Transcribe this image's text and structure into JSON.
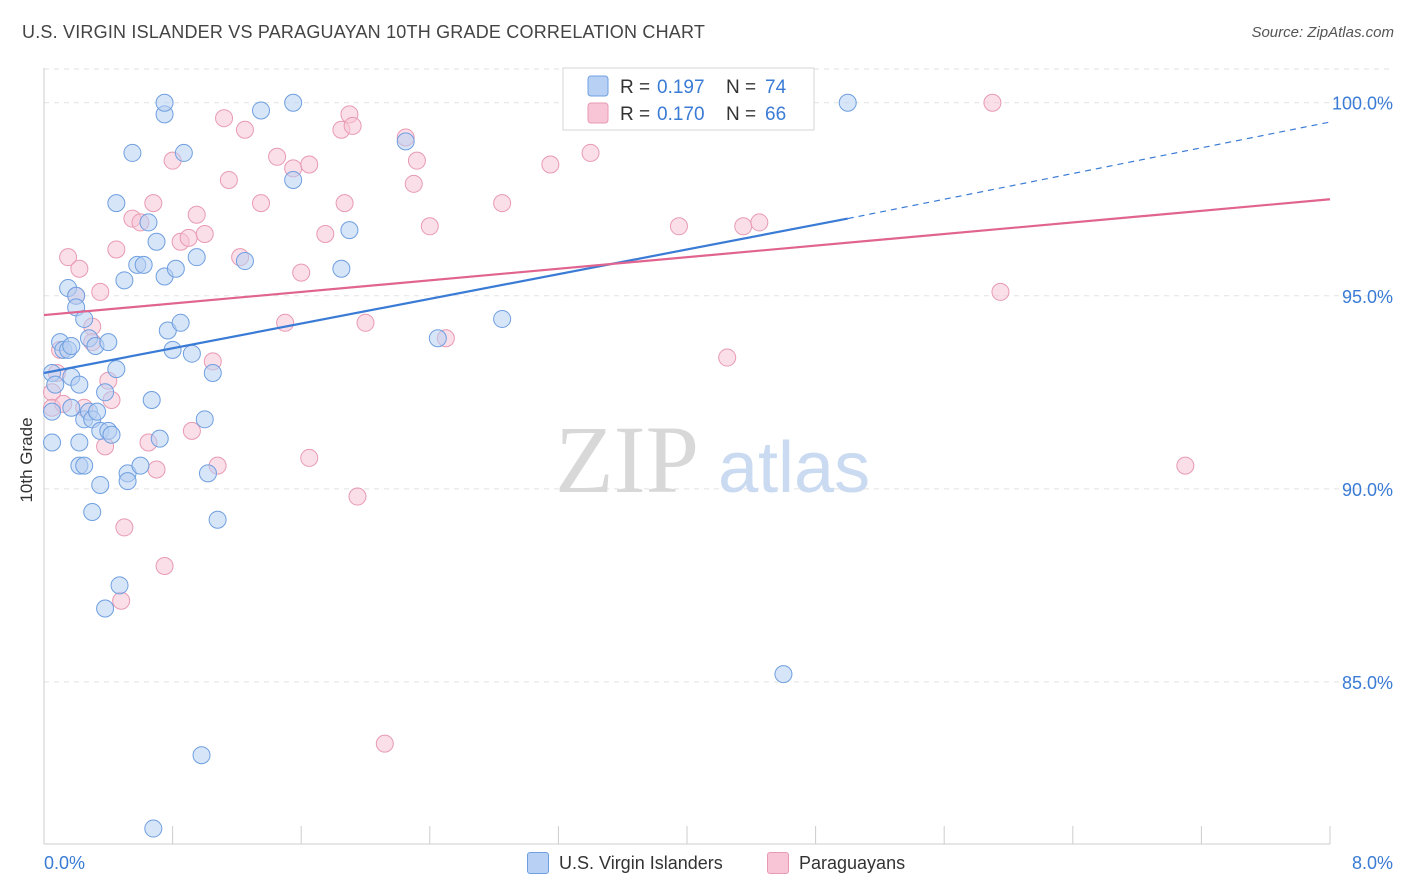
{
  "title": "U.S. VIRGIN ISLANDER VS PARAGUAYAN 10TH GRADE CORRELATION CHART",
  "source": "Source: ZipAtlas.com",
  "watermark": {
    "zip": "ZIP",
    "atlas": "atlas"
  },
  "chart_data": {
    "type": "scatter",
    "xlabel": "",
    "ylabel": "10th Grade",
    "xlim": [
      0.0,
      8.0
    ],
    "ylim": [
      80.8,
      100.9
    ],
    "x_tick_labels": [
      "0.0%",
      "8.0%"
    ],
    "y_ticks": [
      85.0,
      90.0,
      95.0,
      100.0
    ],
    "y_tick_labels": [
      "85.0%",
      "90.0%",
      "95.0%",
      "100.0%"
    ],
    "grid": true,
    "legend": [
      {
        "r_label": "R =",
        "r_value": "0.197",
        "n_label": "N =",
        "n_value": "74"
      },
      {
        "r_label": "R =",
        "r_value": "0.170",
        "n_label": "N =",
        "n_value": "66"
      }
    ],
    "series": [
      {
        "name": "U.S. Virgin Islanders",
        "color": "#6f9fe0",
        "fill": "#b7d0f3",
        "line_color": "#3a7bd5",
        "trend": {
          "x0": 0.0,
          "y0": 93.0,
          "x1": 5.0,
          "y1": 97.0,
          "x_end": 8.0,
          "y_end": 99.5
        },
        "points": [
          [
            0.05,
            93.0
          ],
          [
            0.07,
            92.7
          ],
          [
            0.05,
            92.0
          ],
          [
            0.05,
            91.2
          ],
          [
            0.1,
            93.8
          ],
          [
            0.12,
            93.6
          ],
          [
            0.15,
            95.2
          ],
          [
            0.15,
            93.6
          ],
          [
            0.17,
            92.9
          ],
          [
            0.17,
            92.1
          ],
          [
            0.17,
            93.7
          ],
          [
            0.2,
            95.0
          ],
          [
            0.2,
            94.7
          ],
          [
            0.22,
            92.7
          ],
          [
            0.22,
            90.6
          ],
          [
            0.22,
            91.2
          ],
          [
            0.25,
            94.4
          ],
          [
            0.25,
            91.8
          ],
          [
            0.25,
            90.6
          ],
          [
            0.28,
            93.9
          ],
          [
            0.28,
            92.0
          ],
          [
            0.3,
            91.8
          ],
          [
            0.3,
            89.4
          ],
          [
            0.32,
            93.7
          ],
          [
            0.33,
            92.0
          ],
          [
            0.35,
            91.5
          ],
          [
            0.35,
            90.1
          ],
          [
            0.38,
            92.5
          ],
          [
            0.38,
            86.9
          ],
          [
            0.4,
            93.8
          ],
          [
            0.4,
            91.5
          ],
          [
            0.42,
            91.4
          ],
          [
            0.45,
            93.1
          ],
          [
            0.45,
            97.4
          ],
          [
            0.47,
            87.5
          ],
          [
            0.5,
            95.4
          ],
          [
            0.52,
            90.4
          ],
          [
            0.52,
            90.2
          ],
          [
            0.55,
            98.7
          ],
          [
            0.58,
            95.8
          ],
          [
            0.6,
            90.6
          ],
          [
            0.62,
            95.8
          ],
          [
            0.65,
            96.9
          ],
          [
            0.67,
            92.3
          ],
          [
            0.68,
            81.2
          ],
          [
            0.7,
            96.4
          ],
          [
            0.72,
            91.3
          ],
          [
            0.75,
            95.5
          ],
          [
            0.75,
            99.7
          ],
          [
            0.77,
            94.1
          ],
          [
            0.8,
            93.6
          ],
          [
            0.82,
            95.7
          ],
          [
            0.85,
            94.3
          ],
          [
            0.87,
            98.7
          ],
          [
            0.92,
            93.5
          ],
          [
            0.95,
            96.0
          ],
          [
            1.0,
            91.8
          ],
          [
            1.02,
            90.4
          ],
          [
            1.05,
            93.0
          ],
          [
            1.08,
            89.2
          ],
          [
            1.25,
            95.9
          ],
          [
            1.35,
            99.8
          ],
          [
            1.55,
            98.0
          ],
          [
            1.55,
            100.0
          ],
          [
            1.85,
            95.7
          ],
          [
            1.9,
            96.7
          ],
          [
            2.25,
            99.0
          ],
          [
            2.45,
            93.9
          ],
          [
            2.85,
            94.4
          ],
          [
            3.5,
            99.7
          ],
          [
            4.6,
            85.2
          ],
          [
            5.0,
            100.0
          ],
          [
            0.98,
            83.1
          ],
          [
            0.75,
            100.0
          ]
        ]
      },
      {
        "name": "Paraguayans",
        "color": "#e89ab2",
        "fill": "#f7c5d5",
        "line_color": "#e0648f",
        "trend": {
          "x0": 0.0,
          "y0": 94.5,
          "x1": 8.0,
          "y1": 97.5
        },
        "points": [
          [
            0.05,
            92.5
          ],
          [
            0.05,
            92.1
          ],
          [
            0.08,
            93.0
          ],
          [
            0.1,
            93.6
          ],
          [
            0.12,
            92.2
          ],
          [
            0.15,
            96.0
          ],
          [
            0.2,
            95.0
          ],
          [
            0.22,
            95.7
          ],
          [
            0.25,
            92.1
          ],
          [
            0.3,
            94.2
          ],
          [
            0.3,
            93.8
          ],
          [
            0.35,
            95.1
          ],
          [
            0.38,
            91.1
          ],
          [
            0.4,
            92.8
          ],
          [
            0.42,
            92.3
          ],
          [
            0.45,
            96.2
          ],
          [
            0.48,
            87.1
          ],
          [
            0.5,
            89.0
          ],
          [
            0.55,
            97.0
          ],
          [
            0.6,
            96.9
          ],
          [
            0.65,
            91.2
          ],
          [
            0.68,
            97.4
          ],
          [
            0.7,
            90.5
          ],
          [
            0.75,
            88.0
          ],
          [
            0.8,
            98.5
          ],
          [
            0.85,
            96.4
          ],
          [
            0.9,
            96.5
          ],
          [
            0.92,
            91.5
          ],
          [
            0.95,
            97.1
          ],
          [
            1.0,
            96.6
          ],
          [
            1.05,
            93.3
          ],
          [
            1.08,
            90.6
          ],
          [
            1.12,
            99.6
          ],
          [
            1.15,
            98.0
          ],
          [
            1.22,
            96.0
          ],
          [
            1.25,
            99.3
          ],
          [
            1.35,
            97.4
          ],
          [
            1.45,
            98.6
          ],
          [
            1.5,
            94.3
          ],
          [
            1.55,
            98.3
          ],
          [
            1.6,
            95.6
          ],
          [
            1.65,
            98.4
          ],
          [
            1.65,
            90.8
          ],
          [
            1.75,
            96.6
          ],
          [
            1.85,
            99.3
          ],
          [
            1.87,
            97.4
          ],
          [
            1.9,
            99.7
          ],
          [
            1.92,
            99.4
          ],
          [
            1.95,
            89.8
          ],
          [
            2.0,
            94.3
          ],
          [
            2.12,
            83.4
          ],
          [
            2.25,
            99.1
          ],
          [
            2.3,
            97.9
          ],
          [
            2.32,
            98.5
          ],
          [
            2.4,
            96.8
          ],
          [
            2.5,
            93.9
          ],
          [
            2.85,
            97.4
          ],
          [
            3.15,
            98.4
          ],
          [
            3.4,
            98.7
          ],
          [
            3.95,
            96.8
          ],
          [
            4.25,
            93.4
          ],
          [
            4.35,
            96.8
          ],
          [
            4.45,
            96.9
          ],
          [
            5.95,
            95.1
          ],
          [
            7.1,
            90.6
          ],
          [
            5.9,
            100.0
          ]
        ]
      }
    ]
  },
  "legend_bottom": [
    {
      "label": "U.S. Virgin Islanders",
      "color": "#b7d0f3",
      "border": "#6f9fe0"
    },
    {
      "label": "Paraguayans",
      "color": "#f7c5d5",
      "border": "#e89ab2"
    }
  ]
}
